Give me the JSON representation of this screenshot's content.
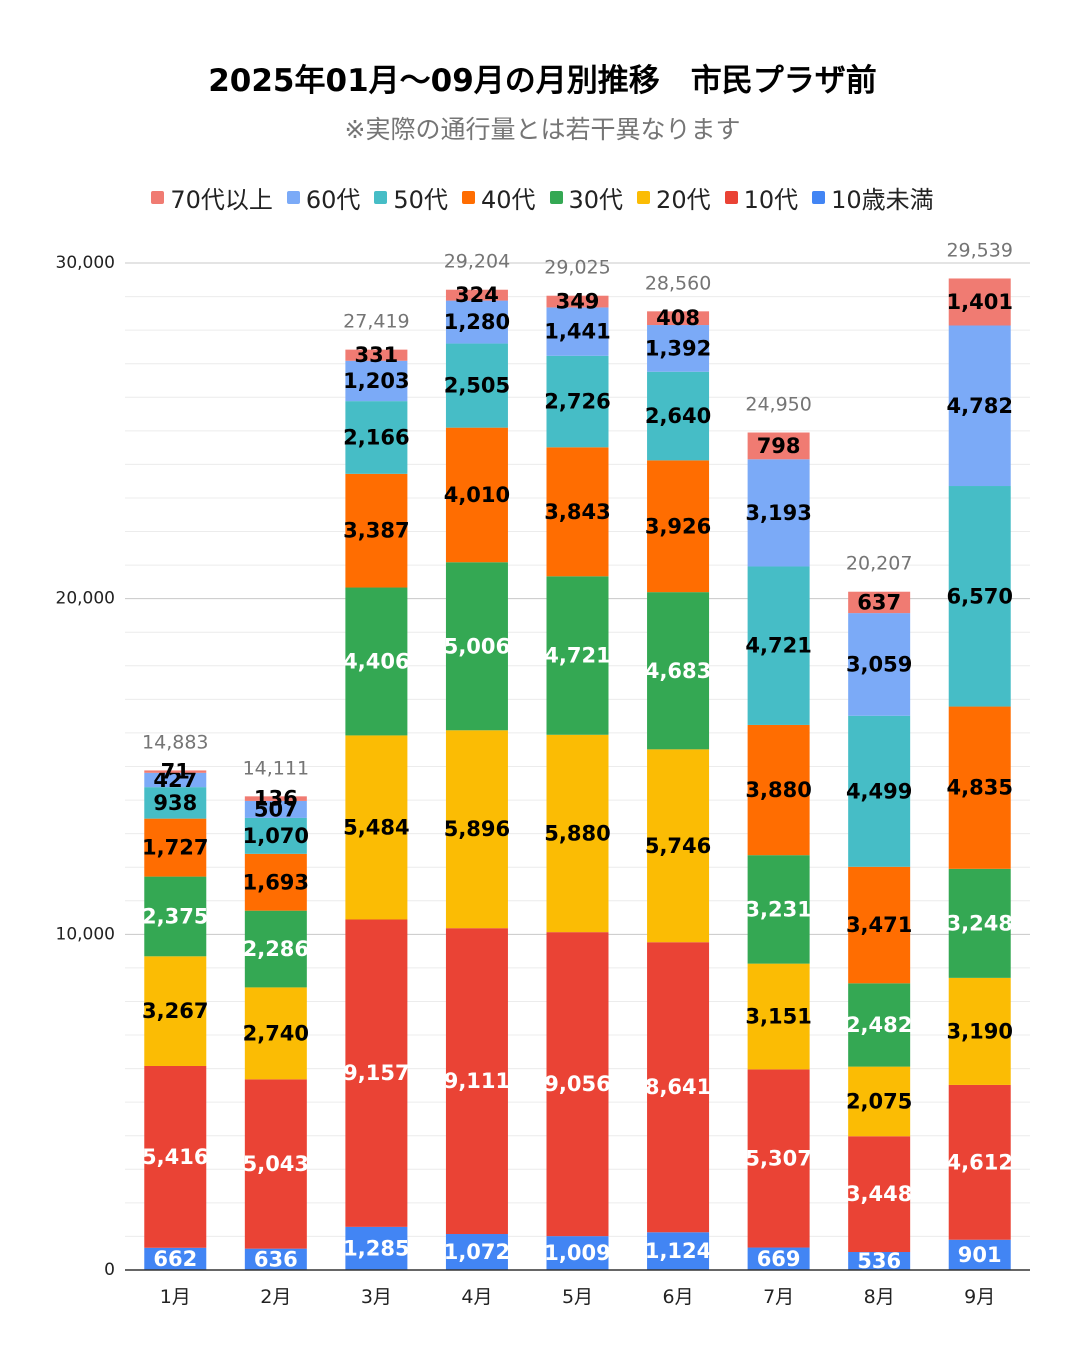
{
  "chart_data": {
    "type": "bar",
    "stacked": true,
    "title": "2025年01月～09月の月別推移　市民プラザ前",
    "subtitle": "※実際の通行量とは若干異なります",
    "categories": [
      "1月",
      "2月",
      "3月",
      "4月",
      "5月",
      "6月",
      "7月",
      "8月",
      "9月"
    ],
    "ylim": [
      0,
      30000
    ],
    "yticks": [
      0,
      10000,
      20000,
      30000
    ],
    "ytick_labels": [
      "0",
      "10,000",
      "20,000",
      "30,000"
    ],
    "legend_position": "top",
    "series": [
      {
        "name": "10歳未満",
        "color": "#4285f4",
        "label_color": "#ffffff",
        "values": [
          662,
          636,
          1285,
          1072,
          1009,
          1124,
          669,
          536,
          901
        ]
      },
      {
        "name": "10代",
        "color": "#ea4335",
        "label_color": "#ffffff",
        "values": [
          5416,
          5043,
          9157,
          9111,
          9056,
          8641,
          5307,
          3448,
          4612
        ]
      },
      {
        "name": "20代",
        "color": "#fbbc04",
        "label_color": "#000000",
        "values": [
          3267,
          2740,
          5484,
          5896,
          5880,
          5746,
          3151,
          2075,
          3190
        ]
      },
      {
        "name": "30代",
        "color": "#34a853",
        "label_color": "#ffffff",
        "values": [
          2375,
          2286,
          4406,
          5006,
          4721,
          4683,
          3231,
          2482,
          3248
        ]
      },
      {
        "name": "40代",
        "color": "#ff6d01",
        "label_color": "#000000",
        "values": [
          1727,
          1693,
          3387,
          4010,
          3843,
          3926,
          3880,
          3471,
          4835
        ]
      },
      {
        "name": "50代",
        "color": "#46bdc6",
        "label_color": "#000000",
        "values": [
          938,
          1070,
          2166,
          2505,
          2726,
          2640,
          4721,
          4499,
          6570
        ]
      },
      {
        "name": "60代",
        "color": "#7baaf7",
        "label_color": "#000000",
        "values": [
          427,
          507,
          1203,
          1280,
          1441,
          1392,
          3193,
          3059,
          4782
        ]
      },
      {
        "name": "70代以上",
        "color": "#f07b72",
        "label_color": "#000000",
        "values": [
          71,
          136,
          331,
          324,
          349,
          408,
          798,
          637,
          1401
        ]
      }
    ],
    "totals": [
      14883,
      14111,
      27419,
      29204,
      29025,
      28560,
      24950,
      20207,
      29539
    ],
    "total_labels": [
      "14,883",
      "14,111",
      "27,419",
      "29,204",
      "29,025",
      "28,560",
      "24,950",
      "20,207",
      "29,539"
    ],
    "segment_labels": [
      [
        "662",
        "636",
        "1,285",
        "1,072",
        "1,009",
        "1,124",
        "669",
        "536",
        "901"
      ],
      [
        "5,416",
        "5,043",
        "9,157",
        "9,111",
        "9,056",
        "8,641",
        "5,307",
        "3,448",
        "4,612"
      ],
      [
        "3,267",
        "2,740",
        "5,484",
        "5,896",
        "5,880",
        "5,746",
        "3,151",
        "2,075",
        "3,190"
      ],
      [
        "2,375",
        "2,286",
        "4,406",
        "5,006",
        "4,721",
        "4,683",
        "3,231",
        "2,482",
        "3,248"
      ],
      [
        "1,727",
        "1,693",
        "3,387",
        "4,010",
        "3,843",
        "3,926",
        "3,880",
        "3,471",
        "4,835"
      ],
      [
        "938",
        "1,070",
        "2,166",
        "2,505",
        "2,726",
        "2,640",
        "4,721",
        "4,499",
        "6,570"
      ],
      [
        "427",
        "507",
        "1,203",
        "1,280",
        "1,441",
        "1,392",
        "3,193",
        "3,059",
        "4,782"
      ],
      [
        "71",
        "136",
        "331",
        "324",
        "349",
        "408",
        "798",
        "637",
        "1,401"
      ]
    ]
  }
}
